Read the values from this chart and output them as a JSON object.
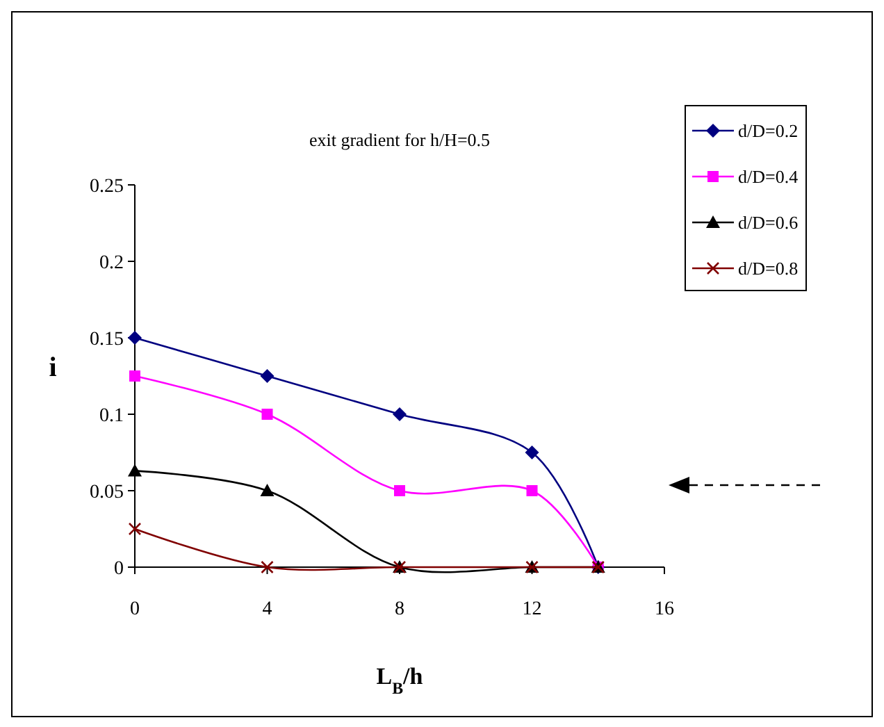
{
  "chart_data": {
    "type": "line",
    "title": "exit gradient for h/H=0.5",
    "xlabel": "L$_{B}$/h",
    "ylabel": "i",
    "xlim": [
      0,
      16
    ],
    "xticks": [
      0,
      4,
      8,
      12,
      16
    ],
    "ylim": [
      0,
      0.25
    ],
    "yticks": [
      0,
      0.05,
      0.1,
      0.15,
      0.2,
      0.25
    ],
    "grid": false,
    "legend": "right",
    "series": [
      {
        "name": "d/D=0.2",
        "color": "#000080",
        "marker": "diamond",
        "x": [
          0,
          4,
          8,
          12,
          14
        ],
        "values": [
          0.15,
          0.125,
          0.1,
          0.075,
          0
        ]
      },
      {
        "name": "d/D=0.4",
        "color": "#ff00ff",
        "marker": "square",
        "x": [
          0,
          4,
          8,
          12,
          14
        ],
        "values": [
          0.125,
          0.1,
          0.05,
          0.05,
          0
        ]
      },
      {
        "name": "d/D=0.6",
        "color": "#000000",
        "marker": "triangle",
        "x": [
          0,
          4,
          8,
          12,
          14
        ],
        "values": [
          0.063,
          0.05,
          0,
          0,
          0
        ]
      },
      {
        "name": "d/D=0.8",
        "color": "#800000",
        "marker": "cross",
        "x": [
          0,
          4,
          8,
          12,
          14
        ],
        "values": [
          0.025,
          0,
          0,
          0,
          0
        ]
      }
    ]
  }
}
